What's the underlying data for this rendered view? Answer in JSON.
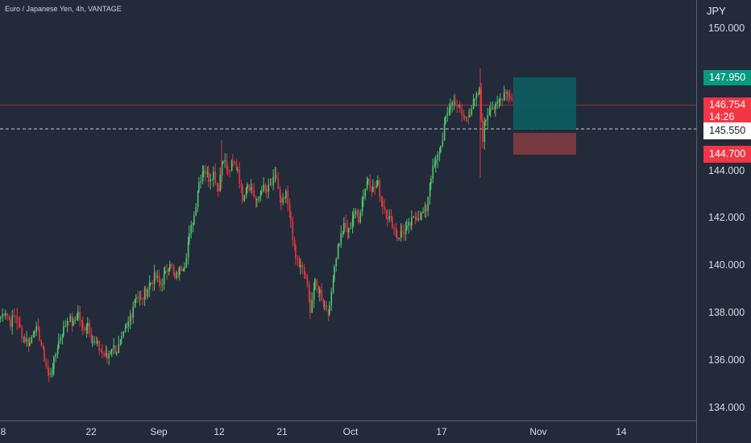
{
  "chart": {
    "title": "Euro / Japanese Yen, 4h, VANTAGE",
    "currency": "JPY"
  },
  "colors": {
    "background": "#232a3a",
    "up_candle": "#4ec26a",
    "down_candle": "#e0353d",
    "take_profit_zone": "#0f5c5f",
    "stop_loss_zone": "#7e3a40",
    "current_price_line": "#f23645"
  },
  "price_scale": {
    "labels": [
      "150.000",
      "144.000",
      "142.000",
      "140.000",
      "138.000",
      "136.000",
      "134.000"
    ]
  },
  "time_scale": {
    "labels": [
      "8",
      "22",
      "Sep",
      "12",
      "21",
      "Oct",
      "17",
      "Nov",
      "14"
    ]
  },
  "position": {
    "take_profit": "147.950",
    "current_price": "146.754",
    "countdown": "14:26",
    "entry": "145.550",
    "stop_loss": "144.700"
  },
  "chart_data": {
    "type": "candlestick",
    "title": "Euro / Japanese Yen, 4h, VANTAGE",
    "ylabel": "JPY",
    "ylim": [
      133.5,
      151.0
    ],
    "close_path": [
      [
        0,
        137.8
      ],
      [
        6,
        138.1
      ],
      [
        12,
        137.6
      ],
      [
        18,
        137.9
      ],
      [
        24,
        137.3
      ],
      [
        30,
        136.9
      ],
      [
        36,
        136.7
      ],
      [
        42,
        137.4
      ],
      [
        48,
        137.0
      ],
      [
        54,
        136.1
      ],
      [
        60,
        135.3
      ],
      [
        66,
        135.9
      ],
      [
        72,
        136.8
      ],
      [
        78,
        137.3
      ],
      [
        84,
        137.8
      ],
      [
        90,
        137.5
      ],
      [
        96,
        138.0
      ],
      [
        102,
        137.3
      ],
      [
        108,
        137.6
      ],
      [
        114,
        136.8
      ],
      [
        120,
        136.6
      ],
      [
        126,
        136.3
      ],
      [
        132,
        136.1
      ],
      [
        138,
        136.6
      ],
      [
        144,
        136.4
      ],
      [
        150,
        136.8
      ],
      [
        156,
        137.3
      ],
      [
        162,
        138.0
      ],
      [
        168,
        138.8
      ],
      [
        174,
        138.5
      ],
      [
        180,
        138.9
      ],
      [
        186,
        139.3
      ],
      [
        192,
        139.5
      ],
      [
        198,
        139.2
      ],
      [
        204,
        139.6
      ],
      [
        210,
        140.2
      ],
      [
        216,
        139.4
      ],
      [
        222,
        139.8
      ],
      [
        228,
        140.1
      ],
      [
        234,
        141.2
      ],
      [
        240,
        142.1
      ],
      [
        246,
        143.5
      ],
      [
        252,
        144.1
      ],
      [
        258,
        143.7
      ],
      [
        264,
        143.9
      ],
      [
        270,
        143.3
      ],
      [
        276,
        144.6
      ],
      [
        282,
        143.9
      ],
      [
        288,
        144.3
      ],
      [
        294,
        144.1
      ],
      [
        300,
        142.9
      ],
      [
        306,
        143.5
      ],
      [
        312,
        143.2
      ],
      [
        318,
        142.6
      ],
      [
        324,
        143.3
      ],
      [
        330,
        143.1
      ],
      [
        336,
        143.4
      ],
      [
        342,
        143.7
      ],
      [
        348,
        142.5
      ],
      [
        354,
        142.9
      ],
      [
        360,
        141.9
      ],
      [
        366,
        140.3
      ],
      [
        372,
        139.9
      ],
      [
        378,
        139.6
      ],
      [
        384,
        138.2
      ],
      [
        390,
        139.2
      ],
      [
        396,
        138.9
      ],
      [
        402,
        138.3
      ],
      [
        408,
        138.1
      ],
      [
        414,
        140.0
      ],
      [
        420,
        141.0
      ],
      [
        426,
        141.6
      ],
      [
        432,
        141.4
      ],
      [
        438,
        142.2
      ],
      [
        444,
        142.0
      ],
      [
        450,
        143.0
      ],
      [
        456,
        143.7
      ],
      [
        462,
        143.2
      ],
      [
        468,
        143.4
      ],
      [
        474,
        142.6
      ],
      [
        480,
        142.1
      ],
      [
        486,
        141.8
      ],
      [
        492,
        141.2
      ],
      [
        498,
        141.4
      ],
      [
        504,
        141.5
      ],
      [
        510,
        141.8
      ],
      [
        516,
        142.1
      ],
      [
        522,
        142.1
      ],
      [
        528,
        142.4
      ],
      [
        534,
        143.8
      ],
      [
        540,
        144.3
      ],
      [
        546,
        145.0
      ],
      [
        552,
        146.1
      ],
      [
        558,
        146.8
      ],
      [
        564,
        146.9
      ],
      [
        570,
        146.5
      ],
      [
        576,
        146.2
      ],
      [
        582,
        146.5
      ],
      [
        588,
        146.9
      ],
      [
        594,
        147.3
      ],
      [
        598,
        145.4
      ],
      [
        602,
        146.2
      ],
      [
        608,
        146.8
      ],
      [
        614,
        146.6
      ],
      [
        620,
        147.0
      ],
      [
        626,
        147.4
      ],
      [
        632,
        147.2
      ],
      [
        637,
        146.75
      ]
    ]
  }
}
